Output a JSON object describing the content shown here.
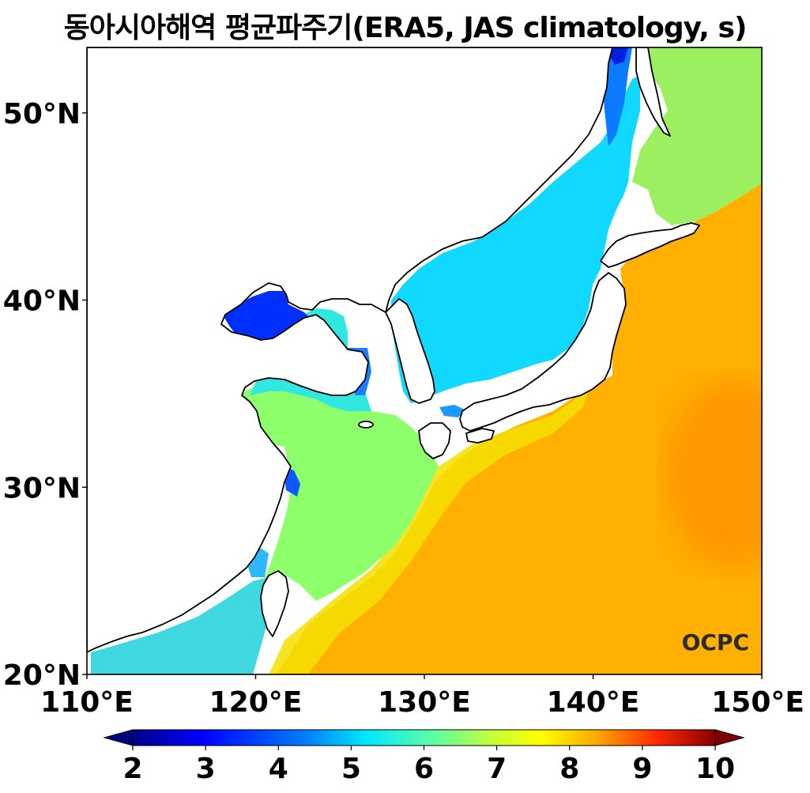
{
  "title": "동아시아해역 평균파주기(ERA5, JAS climatology, s)",
  "logo_text": "OCPC",
  "map": {
    "lon_range": [
      110,
      150
    ],
    "lat_range": [
      20,
      53.5
    ],
    "x_ticks": [
      "110°E",
      "120°E",
      "130°E",
      "140°E",
      "150°E"
    ],
    "y_ticks": [
      "20°N",
      "30°N",
      "40°N",
      "50°N"
    ]
  },
  "colorbar": {
    "min": 2,
    "max": 10,
    "ticks": [
      "2",
      "3",
      "4",
      "5",
      "6",
      "7",
      "8",
      "9",
      "10"
    ],
    "colors": [
      "#00007f",
      "#0000ff",
      "#0080ff",
      "#00e5ff",
      "#7dff7a",
      "#f2ff00",
      "#ffb200",
      "#ff3000",
      "#7f0000"
    ]
  }
}
